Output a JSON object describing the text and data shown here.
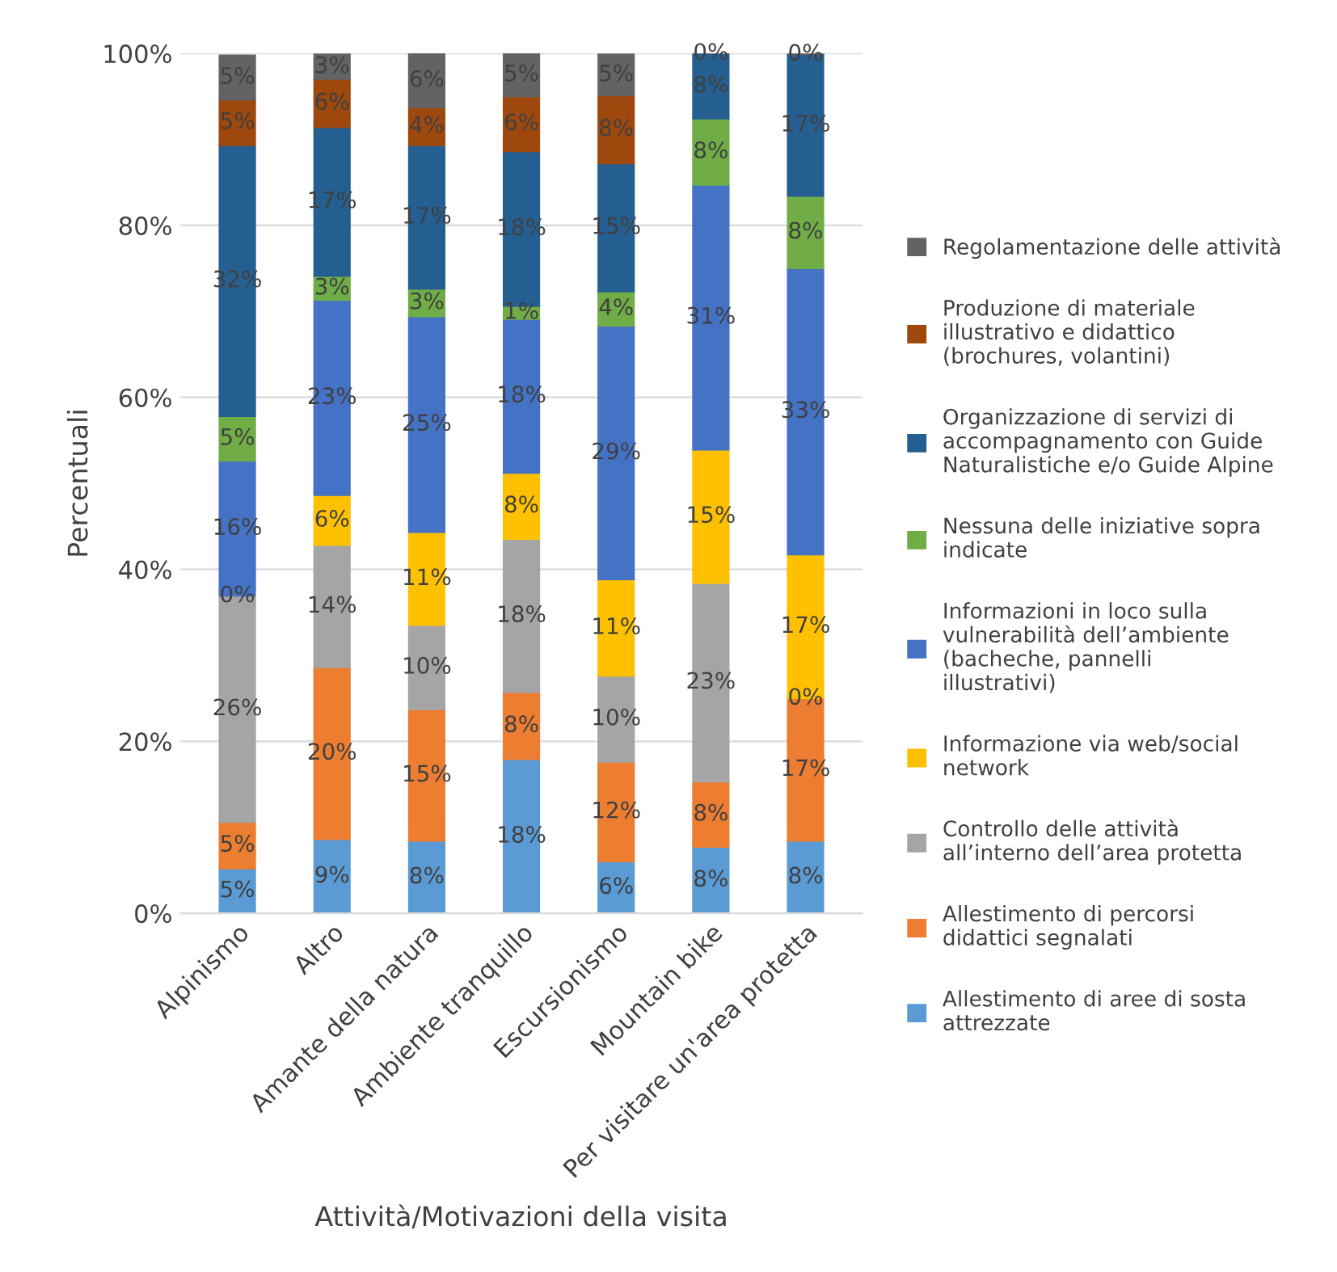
{
  "chart_data": {
    "type": "bar",
    "stacked": true,
    "xlabel": "Attività/Motivazioni della visita",
    "ylabel": "Percentuali",
    "categories": [
      "Alpinismo",
      "Altro",
      "Amante della natura",
      "Ambiente tranquillo",
      "Escursionismo",
      "Mountain bike",
      "Per visitare un'area protetta"
    ],
    "ylim": [
      0,
      100
    ],
    "yticks": [
      {
        "value": 0,
        "label": "0%"
      },
      {
        "value": 20,
        "label": "20%"
      },
      {
        "value": 40,
        "label": "40%"
      },
      {
        "value": 60,
        "label": "60%"
      },
      {
        "value": 80,
        "label": "80%"
      },
      {
        "value": 100,
        "label": "100%"
      }
    ],
    "grid": "y",
    "legend": "right",
    "series": [
      {
        "name": "Allestimento di aree di sosta attrezzate",
        "color": "#5b9bd5",
        "values": [
          5.2,
          8.6,
          8.4,
          17.9,
          6.0,
          7.7,
          8.4
        ],
        "value_labels": [
          "5%",
          "9%",
          "8%",
          "18%",
          "6%",
          "8%",
          "8%"
        ]
      },
      {
        "name": "Allestimento di percorsi didattici segnalati",
        "color": "#ed7d31",
        "values": [
          5.4,
          20.0,
          15.3,
          7.8,
          11.6,
          7.6,
          16.6
        ],
        "value_labels": [
          "5%",
          "20%",
          "15%",
          "8%",
          "12%",
          "8%",
          "17%"
        ]
      },
      {
        "name": "Controllo delle attività all’interno dell’area protetta",
        "color": "#a5a5a5",
        "values": [
          26.3,
          14.2,
          9.8,
          17.8,
          10.0,
          23.1,
          0
        ],
        "value_labels": [
          "26%",
          "14%",
          "10%",
          "18%",
          "10%",
          "23%",
          "0%"
        ]
      },
      {
        "name": "Informazione via web/social network",
        "color": "#ffc000",
        "values": [
          0,
          5.8,
          10.8,
          7.7,
          11.2,
          15.5,
          16.7
        ],
        "value_labels": [
          "0%",
          "6%",
          "11%",
          "8%",
          "11%",
          "15%",
          "17%"
        ]
      },
      {
        "name": "Informazioni in loco sulla vulnerabilità dell’ambiente (bacheche, pannelli illustrativi)",
        "color": "#4472c4",
        "values": [
          15.7,
          22.7,
          25.1,
          17.9,
          29.5,
          30.8,
          33.3
        ],
        "value_labels": [
          "16%",
          "23%",
          "25%",
          "18%",
          "29%",
          "31%",
          "33%"
        ]
      },
      {
        "name": "Nessuna delle iniziative sopra indicate",
        "color": "#70ad47",
        "values": [
          5.2,
          2.8,
          3.2,
          1.5,
          4.0,
          7.7,
          8.4
        ],
        "value_labels": [
          "5%",
          "3%",
          "3%",
          "1%",
          "4%",
          "8%",
          "8%"
        ]
      },
      {
        "name": "Organizzazione di servizi di accompagnamento con Guide Naturalistiche e/o Guide Alpine",
        "color": "#255e91",
        "values": [
          31.5,
          17.3,
          16.7,
          18.0,
          14.9,
          7.6,
          16.5
        ],
        "value_labels": [
          "32%",
          "17%",
          "17%",
          "18%",
          "15%",
          "8%",
          "17%"
        ]
      },
      {
        "name": "Produzione di materiale illustrativo e didattico (brochures, volantini)",
        "color": "#9e480e",
        "values": [
          5.3,
          5.6,
          4.4,
          6.4,
          7.9,
          0,
          0
        ],
        "value_labels": [
          "5%",
          "6%",
          "4%",
          "6%",
          "8%",
          null,
          null
        ]
      },
      {
        "name": "Regolamentazione delle attività",
        "color": "#636363",
        "values": [
          5.2,
          2.9,
          6.3,
          5.0,
          4.8,
          0,
          0
        ],
        "value_labels": [
          "5%",
          "3%",
          "6%",
          "5%",
          "5%",
          "0%",
          "0%"
        ]
      }
    ]
  }
}
